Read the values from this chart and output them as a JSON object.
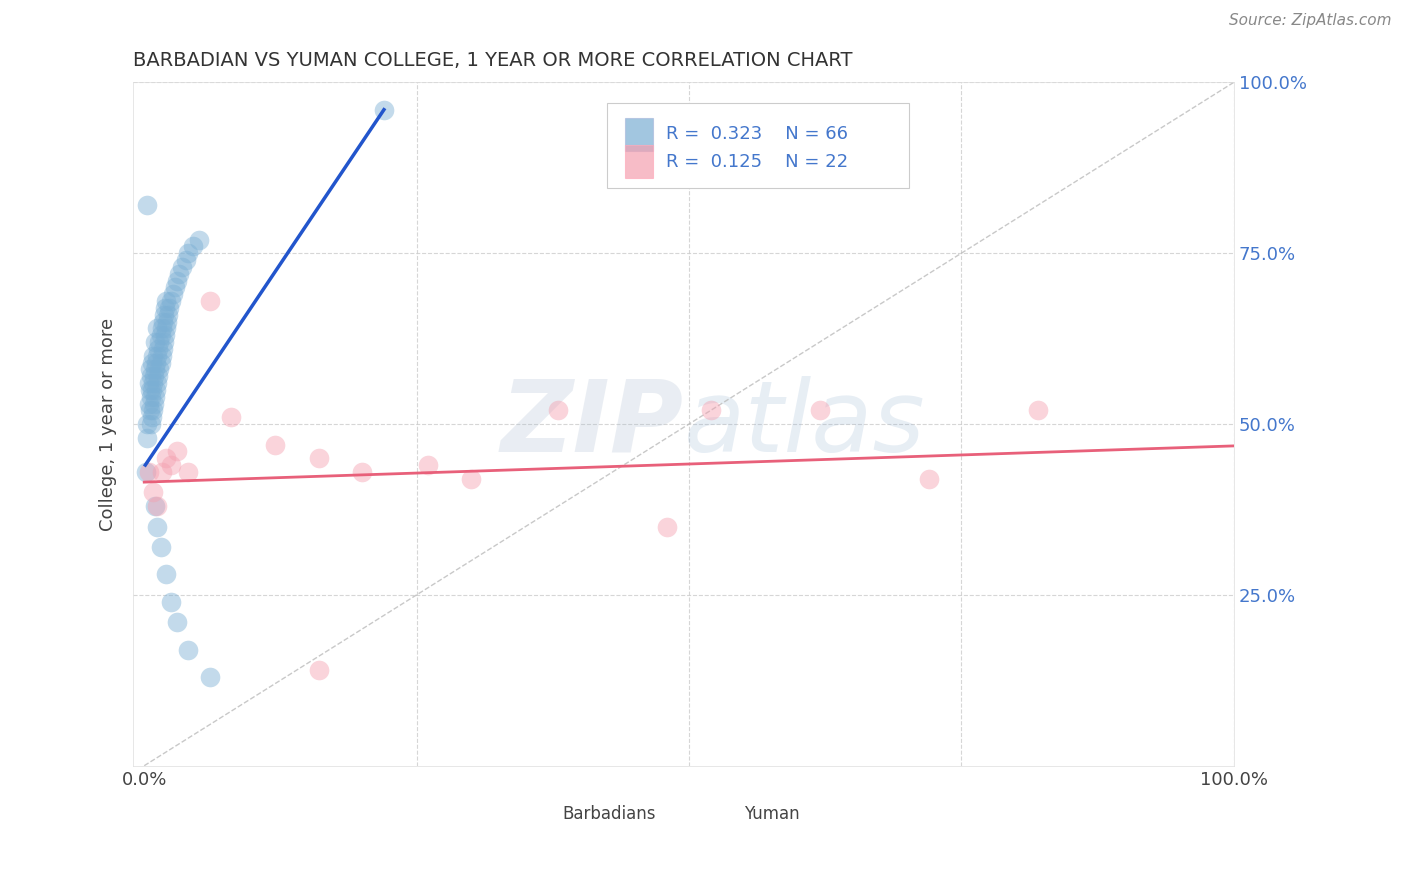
{
  "title": "BARBADIAN VS YUMAN COLLEGE, 1 YEAR OR MORE CORRELATION CHART",
  "source": "Source: ZipAtlas.com",
  "ylabel": "College, 1 year or more",
  "xlim": [
    0,
    1.0
  ],
  "ylim": [
    0,
    1.0
  ],
  "R_blue": 0.323,
  "N_blue": 66,
  "R_pink": 0.125,
  "N_pink": 22,
  "blue_color": "#7BAFD4",
  "pink_color": "#F4A0B0",
  "blue_line_color": "#2255CC",
  "pink_line_color": "#E8607A",
  "tick_color": "#4477CC",
  "background_color": "#FFFFFF",
  "grid_color": "#CCCCCC",
  "blue_x": [
    0.002,
    0.003,
    0.003,
    0.004,
    0.004,
    0.005,
    0.005,
    0.005,
    0.006,
    0.006,
    0.006,
    0.007,
    0.007,
    0.007,
    0.008,
    0.008,
    0.008,
    0.009,
    0.009,
    0.01,
    0.01,
    0.01,
    0.011,
    0.011,
    0.012,
    0.012,
    0.012,
    0.013,
    0.013,
    0.014,
    0.014,
    0.015,
    0.015,
    0.016,
    0.016,
    0.017,
    0.017,
    0.018,
    0.018,
    0.019,
    0.019,
    0.02,
    0.02,
    0.021,
    0.022,
    0.023,
    0.025,
    0.026,
    0.028,
    0.03,
    0.032,
    0.035,
    0.038,
    0.04,
    0.045,
    0.05,
    0.01,
    0.012,
    0.015,
    0.02,
    0.025,
    0.03,
    0.04,
    0.06,
    0.003,
    0.22
  ],
  "blue_y": [
    0.43,
    0.5,
    0.48,
    0.53,
    0.56,
    0.52,
    0.55,
    0.58,
    0.5,
    0.54,
    0.57,
    0.51,
    0.55,
    0.59,
    0.52,
    0.56,
    0.6,
    0.53,
    0.57,
    0.54,
    0.58,
    0.62,
    0.55,
    0.59,
    0.56,
    0.6,
    0.64,
    0.57,
    0.61,
    0.58,
    0.62,
    0.59,
    0.63,
    0.6,
    0.64,
    0.61,
    0.65,
    0.62,
    0.66,
    0.63,
    0.67,
    0.64,
    0.68,
    0.65,
    0.66,
    0.67,
    0.68,
    0.69,
    0.7,
    0.71,
    0.72,
    0.73,
    0.74,
    0.75,
    0.76,
    0.77,
    0.38,
    0.35,
    0.32,
    0.28,
    0.24,
    0.21,
    0.17,
    0.13,
    0.82,
    0.96
  ],
  "pink_x": [
    0.004,
    0.008,
    0.012,
    0.016,
    0.02,
    0.025,
    0.03,
    0.04,
    0.06,
    0.08,
    0.12,
    0.16,
    0.2,
    0.26,
    0.3,
    0.38,
    0.48,
    0.52,
    0.62,
    0.72,
    0.82,
    0.16
  ],
  "pink_y": [
    0.43,
    0.4,
    0.38,
    0.43,
    0.45,
    0.44,
    0.46,
    0.43,
    0.68,
    0.51,
    0.47,
    0.45,
    0.43,
    0.44,
    0.42,
    0.52,
    0.35,
    0.52,
    0.52,
    0.42,
    0.52,
    0.14
  ]
}
